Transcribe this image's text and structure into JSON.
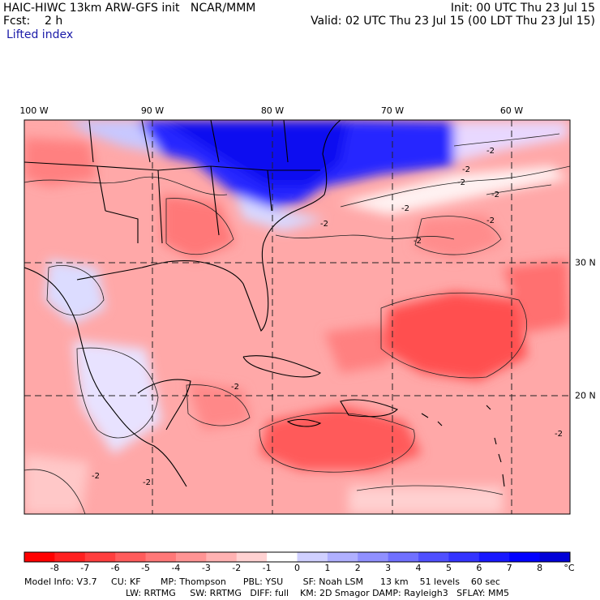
{
  "header": {
    "title": "HAIC-HIWC 13km ARW-GFS init   NCAR/MMM",
    "forecast": "Fcst:    2 h",
    "field": "Lifted index",
    "init": "Init: 00 UTC Thu 23 Jul 15",
    "valid": "Valid: 02 UTC Thu 23 Jul 15 (00 LDT Thu 23 Jul 15)"
  },
  "axes": {
    "longitudes": [
      {
        "label": "100 W"
      },
      {
        "label": "90 W"
      },
      {
        "label": "80 W"
      },
      {
        "label": "70 W"
      },
      {
        "label": "60 W"
      }
    ],
    "latitudes": [
      {
        "label": "30 N"
      },
      {
        "label": "20 N"
      }
    ]
  },
  "contour_labels": [
    "-2",
    "-2",
    "-2",
    "-2",
    "-2",
    "-2",
    "-2",
    "-2",
    "-2",
    "-2",
    "-2",
    "-2"
  ],
  "colorbar": {
    "unit": "°C",
    "labels": [
      "-8",
      "-7",
      "-6",
      "-5",
      "-4",
      "-3",
      "-2",
      "-1",
      "0",
      "1",
      "2",
      "3",
      "4",
      "5",
      "6",
      "7",
      "8"
    ],
    "colors": [
      "#ff0000",
      "#ff2020",
      "#ff3e3e",
      "#ff5c5c",
      "#ff7878",
      "#ff9494",
      "#ffb2b2",
      "#ffd2d2",
      "#ffffff",
      "#d0d0ff",
      "#b0b0ff",
      "#9090ff",
      "#7070ff",
      "#5050ff",
      "#3434ff",
      "#1818ff",
      "#0000ff",
      "#0000d8"
    ]
  },
  "footer": {
    "line1": "Model Info: V3.7     CU: KF       MP: Thompson      PBL: YSU       SF: Noah LSM      13 km    51 levels    60 sec",
    "line2": "LW: RRTMG     SW: RRTMG   DIFF: full    KM: 2D Smagor DAMP: Rayleigh3   SFLAY: MM5"
  }
}
